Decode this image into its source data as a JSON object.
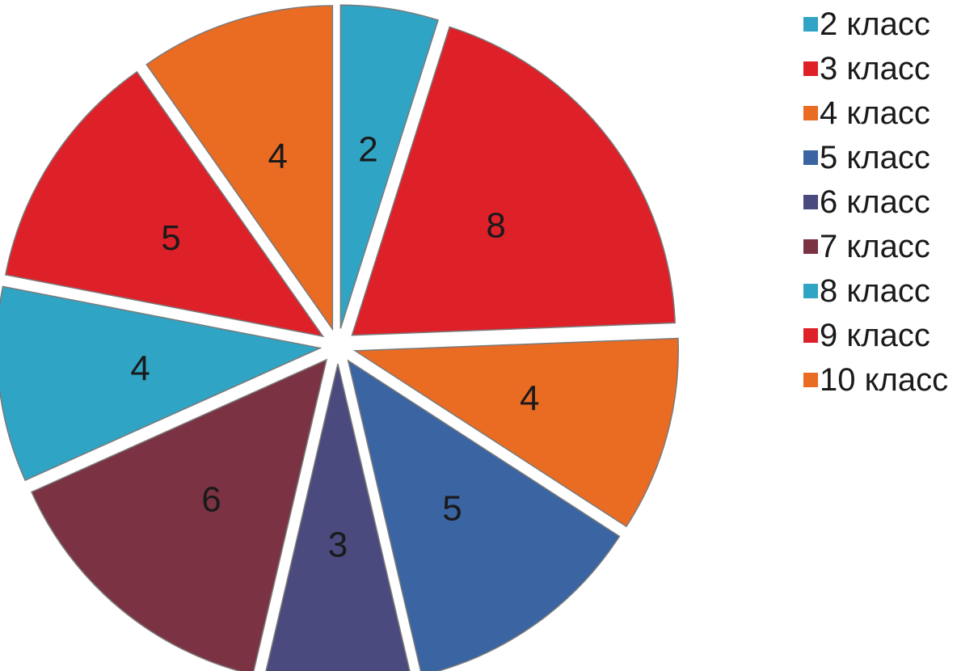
{
  "chart_data": {
    "type": "pie",
    "exploded": true,
    "legend_position": "right",
    "slices": [
      {
        "label": "2 класс",
        "value": 2,
        "color": "#2FA4C4"
      },
      {
        "label": "3 класс",
        "value": 8,
        "color": "#DE2029"
      },
      {
        "label": "4 класс",
        "value": 4,
        "color": "#EA6B22"
      },
      {
        "label": "5 класс",
        "value": 5,
        "color": "#3A64A2"
      },
      {
        "label": "6 класс",
        "value": 3,
        "color": "#4A4A7E"
      },
      {
        "label": "7 класс",
        "value": 6,
        "color": "#7B3344"
      },
      {
        "label": "8 класс",
        "value": 4,
        "color": "#2FA4C4"
      },
      {
        "label": "9 класс",
        "value": 5,
        "color": "#DE2029"
      },
      {
        "label": "10 класс",
        "value": 4,
        "color": "#EA6B22"
      }
    ]
  }
}
